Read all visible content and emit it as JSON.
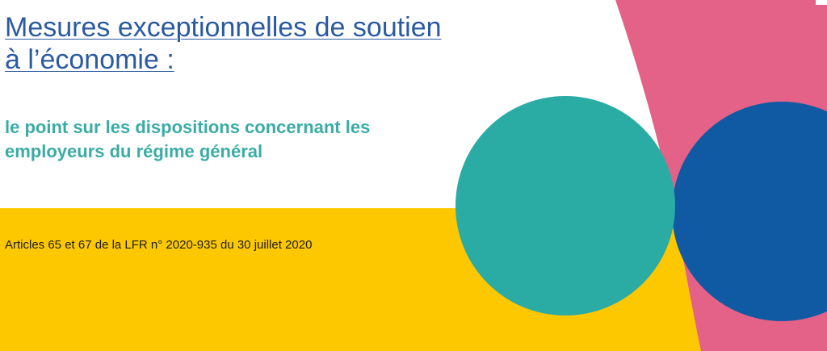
{
  "title": {
    "line1": "Mesures exceptionnelles de soutien",
    "line2": "à l’économie :"
  },
  "subtitle": {
    "line1": "le point sur les dispositions concernant les",
    "line2": "employeurs du régime général"
  },
  "reference": {
    "text": "Articles 65 et 67 de la LFR n° 2020-935 du 30 juillet 2020"
  },
  "colors": {
    "title": "#2b5aa0",
    "subtitle": "#3aaca6",
    "yellow_band": "#fdc800",
    "teal_circle": "#2aaca5",
    "pink_shape": "#e46187",
    "blue_circle": "#0f5aa2"
  }
}
